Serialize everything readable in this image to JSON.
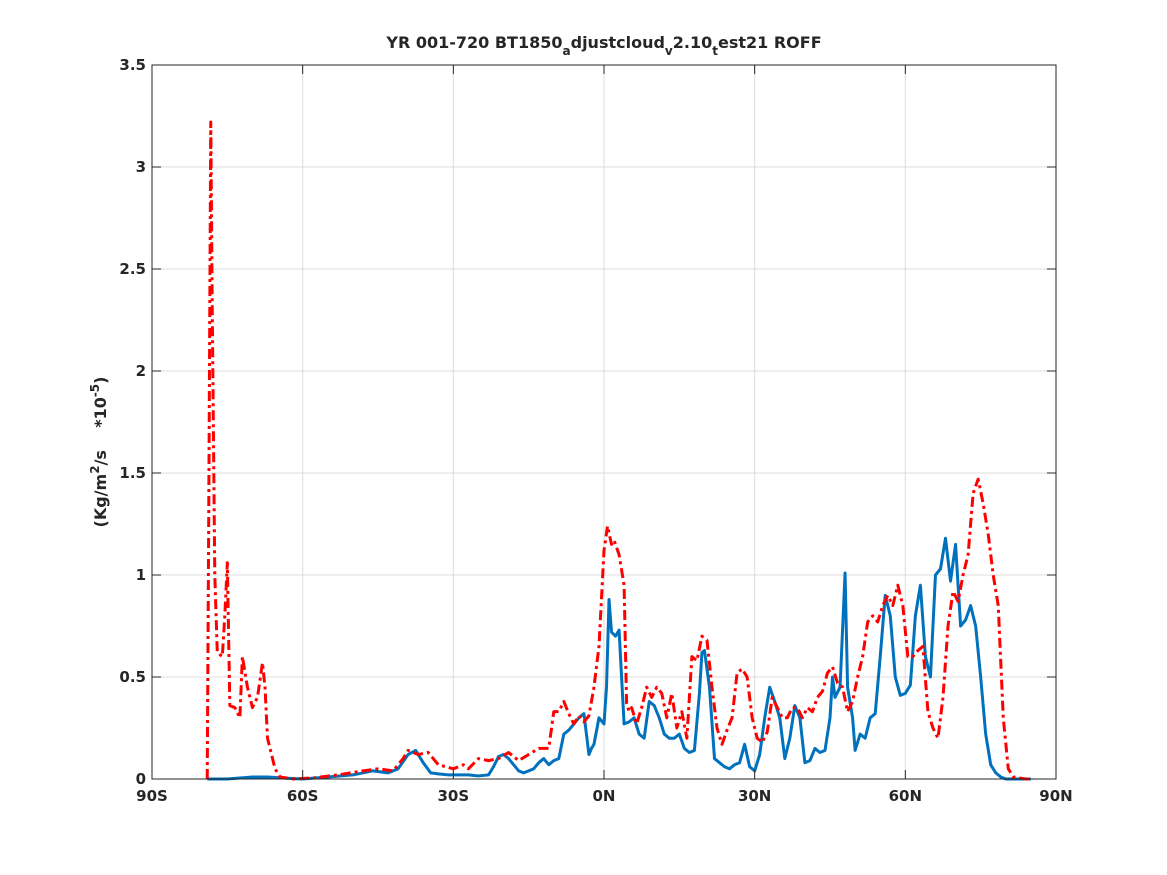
{
  "chart_data": {
    "type": "line",
    "title": {
      "parts": [
        {
          "text": "YR 001-720 BT1850",
          "sub": false
        },
        {
          "text": "a",
          "sub": true
        },
        {
          "text": "djustcloud",
          "sub": false
        },
        {
          "text": "v",
          "sub": true
        },
        {
          "text": "2.10",
          "sub": false
        },
        {
          "text": "t",
          "sub": true
        },
        {
          "text": "est21 ROFF",
          "sub": false
        }
      ]
    },
    "ylabel": {
      "prefix": "(Kg/m",
      "sup1": "2",
      "mid": "/s    *10",
      "sup2": "-5",
      "suffix": ")"
    },
    "xlabel": "",
    "xlim": [
      -90,
      90
    ],
    "ylim": [
      0,
      3.5
    ],
    "xticks": [
      {
        "value": -90,
        "label": "90S"
      },
      {
        "value": -60,
        "label": "60S"
      },
      {
        "value": -30,
        "label": "30S"
      },
      {
        "value": 0,
        "label": "0N"
      },
      {
        "value": 30,
        "label": "30N"
      },
      {
        "value": 60,
        "label": "60N"
      },
      {
        "value": 90,
        "label": "90N"
      }
    ],
    "yticks": [
      {
        "value": 0,
        "label": "0"
      },
      {
        "value": 0.5,
        "label": "0.5"
      },
      {
        "value": 1,
        "label": "1"
      },
      {
        "value": 1.5,
        "label": "1.5"
      },
      {
        "value": 2,
        "label": "2"
      },
      {
        "value": 2.5,
        "label": "2.5"
      },
      {
        "value": 3,
        "label": "3"
      },
      {
        "value": 3.5,
        "label": "3.5"
      }
    ],
    "grid": true,
    "series": [
      {
        "color": "#0072BD",
        "style": "solid",
        "points": [
          [
            -79,
            0.0
          ],
          [
            -75,
            0.0
          ],
          [
            -70,
            0.01
          ],
          [
            -67,
            0.01
          ],
          [
            -64,
            0.005
          ],
          [
            -60,
            0.0
          ],
          [
            -55,
            0.01
          ],
          [
            -50,
            0.02
          ],
          [
            -46,
            0.04
          ],
          [
            -43,
            0.03
          ],
          [
            -41,
            0.05
          ],
          [
            -39,
            0.12
          ],
          [
            -37.5,
            0.14
          ],
          [
            -36,
            0.08
          ],
          [
            -34.5,
            0.03
          ],
          [
            -33,
            0.025
          ],
          [
            -31,
            0.02
          ],
          [
            -29,
            0.02
          ],
          [
            -27,
            0.02
          ],
          [
            -25,
            0.015
          ],
          [
            -23,
            0.02
          ],
          [
            -22,
            0.06
          ],
          [
            -21,
            0.11
          ],
          [
            -20,
            0.12
          ],
          [
            -19,
            0.1
          ],
          [
            -18,
            0.07
          ],
          [
            -17,
            0.04
          ],
          [
            -16,
            0.03
          ],
          [
            -15,
            0.04
          ],
          [
            -14,
            0.05
          ],
          [
            -13,
            0.08
          ],
          [
            -12,
            0.1
          ],
          [
            -11,
            0.07
          ],
          [
            -10,
            0.09
          ],
          [
            -9,
            0.1
          ],
          [
            -8,
            0.22
          ],
          [
            -7,
            0.24
          ],
          [
            -6,
            0.27
          ],
          [
            -5,
            0.3
          ],
          [
            -4,
            0.32
          ],
          [
            -3.5,
            0.22
          ],
          [
            -3,
            0.12
          ],
          [
            -2.5,
            0.15
          ],
          [
            -2,
            0.17
          ],
          [
            -1,
            0.3
          ],
          [
            0,
            0.27
          ],
          [
            0.5,
            0.45
          ],
          [
            1,
            0.88
          ],
          [
            1.5,
            0.72
          ],
          [
            2.3,
            0.7
          ],
          [
            3,
            0.73
          ],
          [
            4,
            0.27
          ],
          [
            5,
            0.28
          ],
          [
            6,
            0.3
          ],
          [
            7,
            0.22
          ],
          [
            8,
            0.2
          ],
          [
            9,
            0.38
          ],
          [
            10,
            0.36
          ],
          [
            11,
            0.3
          ],
          [
            12,
            0.22
          ],
          [
            13,
            0.2
          ],
          [
            14,
            0.2
          ],
          [
            15,
            0.22
          ],
          [
            16,
            0.15
          ],
          [
            17,
            0.13
          ],
          [
            18,
            0.14
          ],
          [
            19,
            0.42
          ],
          [
            19.5,
            0.62
          ],
          [
            20,
            0.63
          ],
          [
            21,
            0.45
          ],
          [
            22,
            0.1
          ],
          [
            23,
            0.08
          ],
          [
            24,
            0.06
          ],
          [
            25,
            0.05
          ],
          [
            26,
            0.07
          ],
          [
            27,
            0.08
          ],
          [
            28,
            0.17
          ],
          [
            29,
            0.06
          ],
          [
            30,
            0.04
          ],
          [
            31,
            0.12
          ],
          [
            32,
            0.3
          ],
          [
            33,
            0.45
          ],
          [
            34,
            0.38
          ],
          [
            35,
            0.3
          ],
          [
            36,
            0.1
          ],
          [
            37,
            0.2
          ],
          [
            38,
            0.36
          ],
          [
            39,
            0.3
          ],
          [
            40,
            0.08
          ],
          [
            41,
            0.09
          ],
          [
            42,
            0.15
          ],
          [
            43,
            0.13
          ],
          [
            44,
            0.14
          ],
          [
            45,
            0.3
          ],
          [
            45.5,
            0.5
          ],
          [
            46,
            0.4
          ],
          [
            47,
            0.45
          ],
          [
            48,
            1.01
          ],
          [
            48.5,
            0.45
          ],
          [
            49.5,
            0.3
          ],
          [
            50,
            0.14
          ],
          [
            51,
            0.22
          ],
          [
            52,
            0.2
          ],
          [
            53,
            0.3
          ],
          [
            54,
            0.32
          ],
          [
            55,
            0.6
          ],
          [
            56,
            0.9
          ],
          [
            57,
            0.8
          ],
          [
            58,
            0.5
          ],
          [
            59,
            0.41
          ],
          [
            60,
            0.42
          ],
          [
            61,
            0.46
          ],
          [
            62,
            0.8
          ],
          [
            63,
            0.95
          ],
          [
            64,
            0.6
          ],
          [
            65,
            0.5
          ],
          [
            66,
            1.0
          ],
          [
            67,
            1.03
          ],
          [
            68,
            1.18
          ],
          [
            69,
            0.97
          ],
          [
            70,
            1.15
          ],
          [
            71,
            0.75
          ],
          [
            72,
            0.78
          ],
          [
            73,
            0.85
          ],
          [
            74,
            0.75
          ],
          [
            75,
            0.5
          ],
          [
            76,
            0.22
          ],
          [
            77,
            0.07
          ],
          [
            78,
            0.03
          ],
          [
            79,
            0.01
          ],
          [
            80,
            0.0
          ],
          [
            83,
            0.0
          ],
          [
            85,
            0.0
          ]
        ]
      },
      {
        "color": "#FF0000",
        "style": "dashdot",
        "points": [
          [
            -79,
            0.0
          ],
          [
            -78.7,
            1.3
          ],
          [
            -78.3,
            3.22
          ],
          [
            -78,
            2.3
          ],
          [
            -77.5,
            1.0
          ],
          [
            -77,
            0.62
          ],
          [
            -76,
            0.6
          ],
          [
            -75.5,
            0.8
          ],
          [
            -75,
            1.06
          ],
          [
            -74.5,
            0.36
          ],
          [
            -73.5,
            0.35
          ],
          [
            -72.5,
            0.3
          ],
          [
            -72,
            0.6
          ],
          [
            -71,
            0.45
          ],
          [
            -70,
            0.35
          ],
          [
            -69,
            0.4
          ],
          [
            -68,
            0.57
          ],
          [
            -67.5,
            0.45
          ],
          [
            -67,
            0.2
          ],
          [
            -65.5,
            0.05
          ],
          [
            -64.5,
            0.01
          ],
          [
            -62,
            0.0
          ],
          [
            -58,
            0.005
          ],
          [
            -53,
            0.02
          ],
          [
            -48,
            0.04
          ],
          [
            -45,
            0.05
          ],
          [
            -42,
            0.04
          ],
          [
            -40,
            0.1
          ],
          [
            -39,
            0.14
          ],
          [
            -37,
            0.12
          ],
          [
            -35,
            0.13
          ],
          [
            -33,
            0.07
          ],
          [
            -30,
            0.05
          ],
          [
            -28,
            0.07
          ],
          [
            -27,
            0.05
          ],
          [
            -25,
            0.1
          ],
          [
            -23,
            0.09
          ],
          [
            -21,
            0.1
          ],
          [
            -19,
            0.13
          ],
          [
            -17,
            0.09
          ],
          [
            -15,
            0.12
          ],
          [
            -13,
            0.15
          ],
          [
            -11,
            0.15
          ],
          [
            -10,
            0.33
          ],
          [
            -9,
            0.33
          ],
          [
            -8,
            0.38
          ],
          [
            -7,
            0.32
          ],
          [
            -6,
            0.27
          ],
          [
            -5,
            0.31
          ],
          [
            -4,
            0.28
          ],
          [
            -3,
            0.31
          ],
          [
            -2,
            0.45
          ],
          [
            -1,
            0.65
          ],
          [
            0,
            1.12
          ],
          [
            0.7,
            1.24
          ],
          [
            1.5,
            1.15
          ],
          [
            2,
            1.17
          ],
          [
            3,
            1.1
          ],
          [
            4,
            0.95
          ],
          [
            4.5,
            0.37
          ],
          [
            5,
            0.33
          ],
          [
            5.5,
            0.35
          ],
          [
            6.5,
            0.27
          ],
          [
            7.5,
            0.35
          ],
          [
            8.5,
            0.45
          ],
          [
            9.5,
            0.4
          ],
          [
            10.5,
            0.45
          ],
          [
            11.5,
            0.42
          ],
          [
            12.5,
            0.3
          ],
          [
            13.5,
            0.42
          ],
          [
            14.5,
            0.25
          ],
          [
            15.5,
            0.33
          ],
          [
            16.5,
            0.2
          ],
          [
            17.5,
            0.6
          ],
          [
            18.5,
            0.58
          ],
          [
            19.5,
            0.7
          ],
          [
            20.5,
            0.68
          ],
          [
            21.5,
            0.45
          ],
          [
            22.5,
            0.25
          ],
          [
            23.5,
            0.17
          ],
          [
            24.5,
            0.24
          ],
          [
            25.5,
            0.3
          ],
          [
            26.5,
            0.52
          ],
          [
            27.5,
            0.54
          ],
          [
            28.5,
            0.5
          ],
          [
            29.5,
            0.3
          ],
          [
            30.5,
            0.2
          ],
          [
            31.5,
            0.18
          ],
          [
            32.5,
            0.23
          ],
          [
            33.5,
            0.4
          ],
          [
            34.5,
            0.35
          ],
          [
            35.5,
            0.3
          ],
          [
            36.5,
            0.3
          ],
          [
            37.5,
            0.35
          ],
          [
            38.5,
            0.35
          ],
          [
            39.5,
            0.3
          ],
          [
            40.5,
            0.35
          ],
          [
            41.5,
            0.33
          ],
          [
            42.5,
            0.4
          ],
          [
            43.5,
            0.43
          ],
          [
            44.5,
            0.52
          ],
          [
            45.5,
            0.55
          ],
          [
            46.5,
            0.47
          ],
          [
            47.5,
            0.45
          ],
          [
            48.5,
            0.33
          ],
          [
            49.5,
            0.38
          ],
          [
            50.5,
            0.5
          ],
          [
            51.5,
            0.6
          ],
          [
            52.5,
            0.77
          ],
          [
            53.5,
            0.8
          ],
          [
            54.5,
            0.77
          ],
          [
            55.5,
            0.85
          ],
          [
            56.5,
            0.9
          ],
          [
            57.5,
            0.85
          ],
          [
            58.5,
            0.95
          ],
          [
            59.5,
            0.85
          ],
          [
            60.5,
            0.6
          ],
          [
            61.5,
            0.6
          ],
          [
            62.5,
            0.63
          ],
          [
            63.5,
            0.65
          ],
          [
            64.5,
            0.33
          ],
          [
            65.5,
            0.25
          ],
          [
            66.5,
            0.2
          ],
          [
            67.5,
            0.4
          ],
          [
            68.5,
            0.75
          ],
          [
            69.5,
            0.92
          ],
          [
            70.5,
            0.87
          ],
          [
            71.5,
            1.0
          ],
          [
            72.5,
            1.1
          ],
          [
            73.5,
            1.4
          ],
          [
            74.5,
            1.47
          ],
          [
            75.5,
            1.35
          ],
          [
            76.5,
            1.2
          ],
          [
            77.5,
            1.0
          ],
          [
            78.5,
            0.85
          ],
          [
            79.5,
            0.3
          ],
          [
            80.5,
            0.05
          ],
          [
            81.5,
            0.01
          ],
          [
            84,
            0.0
          ],
          [
            85.5,
            0.0
          ]
        ]
      }
    ]
  }
}
